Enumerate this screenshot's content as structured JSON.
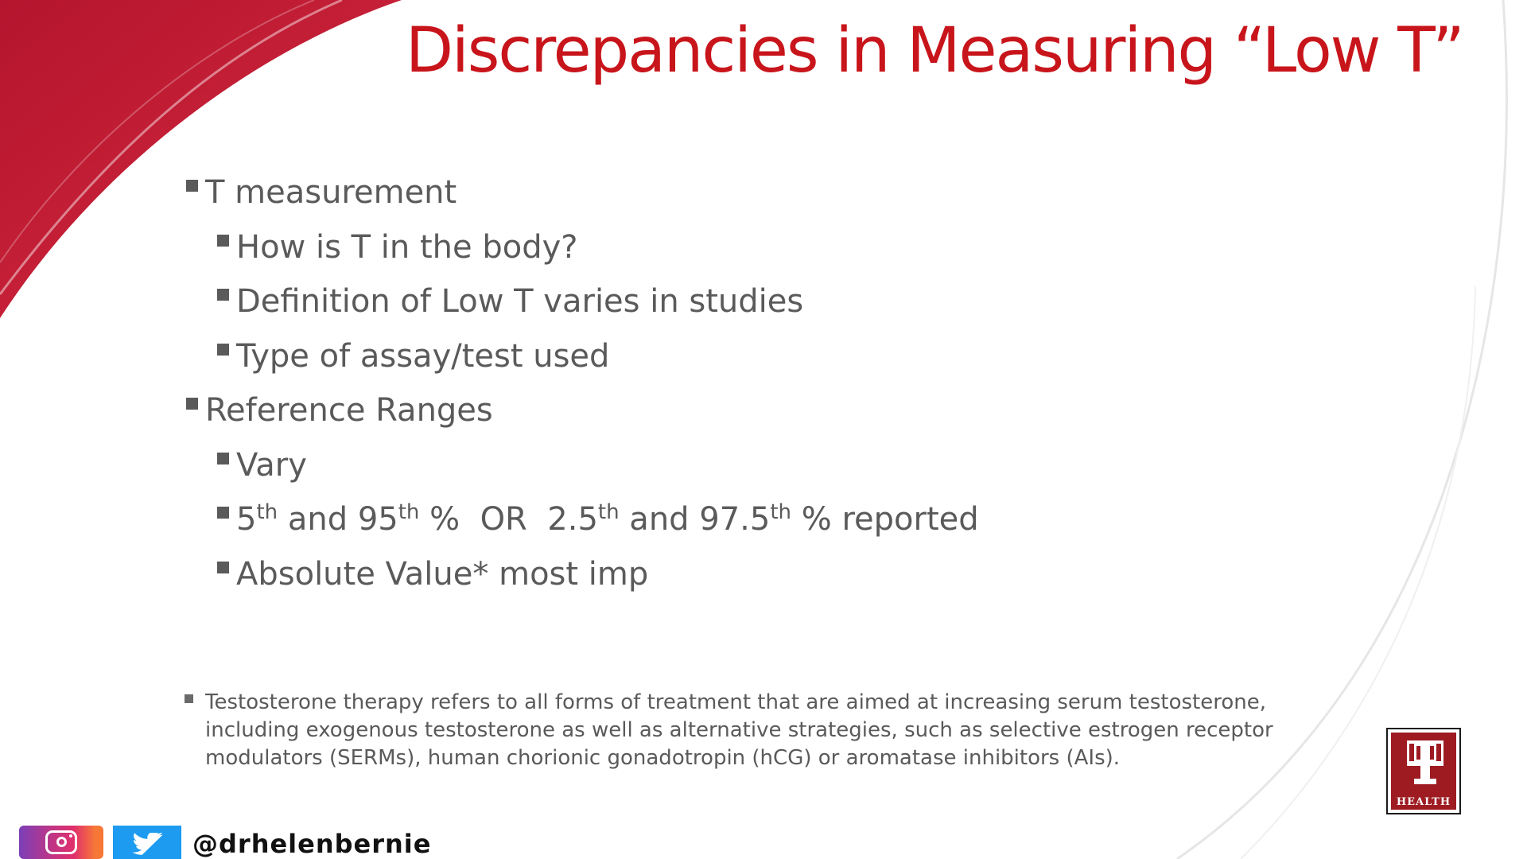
{
  "slide": {
    "title": "Discrepancies in Measuring “Low T”",
    "bullets": [
      {
        "level": 1,
        "text": "T measurement"
      },
      {
        "level": 2,
        "text": "How is T in the body?"
      },
      {
        "level": 2,
        "text": "Definition of Low T varies in studies"
      },
      {
        "level": 2,
        "text": "Type of assay/test used"
      },
      {
        "level": 1,
        "text": "Reference Ranges"
      },
      {
        "level": 2,
        "text": "Vary"
      },
      {
        "level": 2,
        "parts": [
          {
            "t": "5"
          },
          {
            "t": "th",
            "sup": true
          },
          {
            "t": " and 95"
          },
          {
            "t": "th",
            "sup": true
          },
          {
            "t": " %  OR  2.5"
          },
          {
            "t": "th",
            "sup": true
          },
          {
            "t": " and 97.5"
          },
          {
            "t": "th",
            "sup": true
          },
          {
            "t": " % reported"
          }
        ]
      },
      {
        "level": 2,
        "text": "Absolute Value* most imp"
      }
    ],
    "footnote": {
      "lines": [
        "Testosterone therapy refers to all forms of treatment that are aimed at increasing serum testosterone,",
        "including exogenous testosterone as well as alternative strategies, such as selective estrogen receptor",
        "modulators (SERMs), human chorionic gonadotropin (hCG) or aromatase inhibitors (AIs)."
      ]
    },
    "logo": {
      "text": "HEALTH",
      "icon": "iu-trident-logo"
    }
  },
  "social": {
    "icons": [
      "instagram-icon",
      "twitter-icon"
    ],
    "handle": "@drhelenbernie"
  },
  "colors": {
    "title": "#c8151b",
    "swoosh": "#c41a33",
    "body_text": "#5a5a5a",
    "logo_bg": "#9e1b22",
    "twitter": "#1d9bf0"
  }
}
